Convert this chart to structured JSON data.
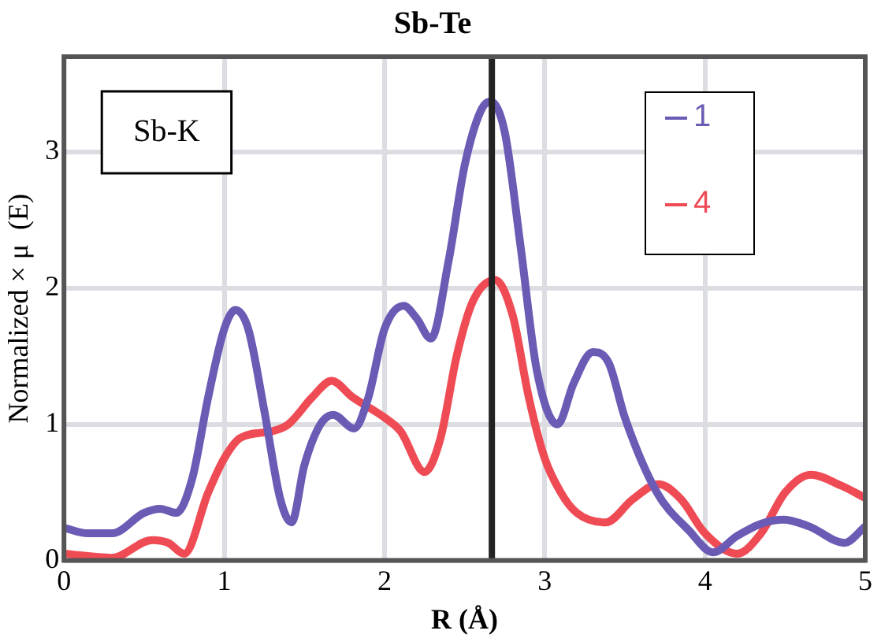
{
  "chart_data": {
    "type": "line",
    "title": "Sb-Te",
    "xlabel": "R (Å)",
    "ylabel": "Normalized × μ  (E)",
    "xlim": [
      0,
      5
    ],
    "xticks": [
      0,
      1,
      2,
      3,
      4,
      5
    ],
    "ylim": [
      0,
      3.7
    ],
    "yticks": [
      0,
      1,
      2,
      3
    ],
    "grid": true,
    "legend": "top right",
    "marker": "none",
    "line_style": "solid",
    "annotations": [
      "Sb-K"
    ],
    "ref_lines": [
      {
        "axis": "x",
        "value": 2.67,
        "color": "#222222"
      }
    ],
    "series": [
      {
        "name": "1",
        "color": "#6b5bb5",
        "x": [
          0,
          0.15,
          0.3,
          0.5,
          0.6,
          0.7,
          0.8,
          0.9,
          1.0,
          1.07,
          1.15,
          1.25,
          1.35,
          1.42,
          1.5,
          1.6,
          1.68,
          1.81,
          1.9,
          2.0,
          2.12,
          2.2,
          2.29,
          2.4,
          2.5,
          2.6,
          2.66,
          2.75,
          2.85,
          2.95,
          3.08,
          3.18,
          3.3,
          3.4,
          3.5,
          3.7,
          3.9,
          4.05,
          4.2,
          4.35,
          4.49,
          4.65,
          4.87,
          5.0
        ],
        "values": [
          0.24,
          0.2,
          0.2,
          0.35,
          0.38,
          0.35,
          0.6,
          1.2,
          1.7,
          1.84,
          1.7,
          1.1,
          0.45,
          0.28,
          0.7,
          1.0,
          1.07,
          0.97,
          1.2,
          1.7,
          1.87,
          1.78,
          1.63,
          2.2,
          2.9,
          3.3,
          3.37,
          3.15,
          2.3,
          1.4,
          1.0,
          1.3,
          1.53,
          1.45,
          1.05,
          0.5,
          0.22,
          0.06,
          0.18,
          0.27,
          0.3,
          0.25,
          0.13,
          0.25
        ]
      },
      {
        "name": "4",
        "color": "#ef4b55",
        "x": [
          0,
          0.3,
          0.55,
          0.65,
          0.75,
          0.9,
          1.0,
          1.1,
          1.3,
          1.4,
          1.55,
          1.67,
          1.8,
          2.0,
          2.1,
          2.25,
          2.35,
          2.45,
          2.55,
          2.69,
          2.8,
          2.9,
          3.0,
          3.1,
          3.2,
          3.38,
          3.55,
          3.71,
          3.85,
          4.0,
          4.2,
          4.35,
          4.5,
          4.66,
          4.85,
          5.0
        ],
        "values": [
          0.05,
          0.02,
          0.15,
          0.13,
          0.05,
          0.5,
          0.75,
          0.9,
          0.95,
          1.0,
          1.2,
          1.32,
          1.2,
          1.05,
          0.95,
          0.65,
          0.9,
          1.5,
          1.9,
          2.06,
          1.8,
          1.2,
          0.75,
          0.5,
          0.35,
          0.28,
          0.45,
          0.56,
          0.45,
          0.2,
          0.05,
          0.2,
          0.5,
          0.63,
          0.55,
          0.46
        ]
      }
    ]
  }
}
